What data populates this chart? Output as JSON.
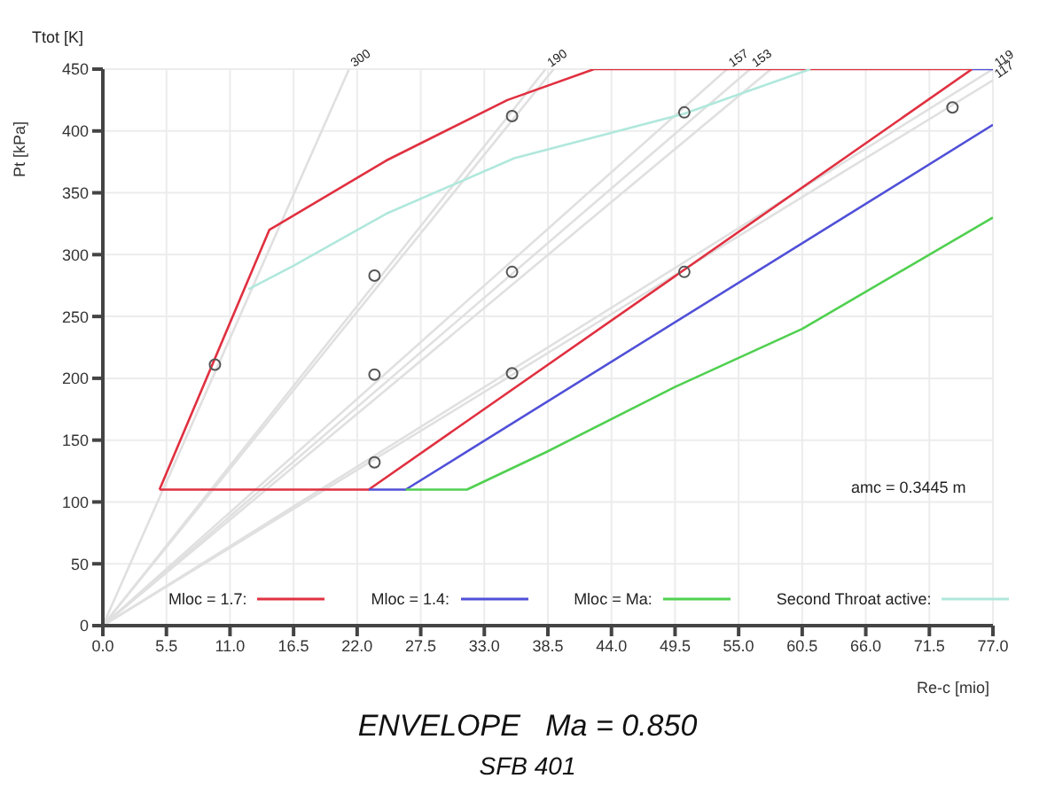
{
  "chart_data": {
    "type": "line",
    "title": "ENVELOPE   Ma = 0.850",
    "subtitle": "SFB 401",
    "xlabel": "Re-c [mio]",
    "ylabel": "Pt [kPa]",
    "annotations": [
      "Ttot [K]",
      "amc = 0.3445 m",
      {
        "text": "300",
        "x": 21.3,
        "y": 450
      },
      {
        "text": "190",
        "x": 38.3,
        "y": 450
      },
      {
        "text": "157",
        "x": 54,
        "y": 450
      },
      {
        "text": "153",
        "x": 56,
        "y": 450
      },
      {
        "text": "119",
        "x": 77,
        "y": 450
      },
      {
        "text": "117",
        "x": 77,
        "y": 441
      }
    ],
    "xlim": [
      0,
      77
    ],
    "xticks": [
      {
        "value": 0,
        "label": "0.0"
      },
      {
        "value": 5.5,
        "label": "5.5"
      },
      {
        "value": 11,
        "label": "11.0"
      },
      {
        "value": 16.5,
        "label": "16.5"
      },
      {
        "value": 22,
        "label": "22.0"
      },
      {
        "value": 27.5,
        "label": "27.5"
      },
      {
        "value": 33,
        "label": "33.0"
      },
      {
        "value": 38.5,
        "label": "38.5"
      },
      {
        "value": 44,
        "label": "44.0"
      },
      {
        "value": 49.5,
        "label": "49.5"
      },
      {
        "value": 55,
        "label": "55.0"
      },
      {
        "value": 60.5,
        "label": "60.5"
      },
      {
        "value": 66,
        "label": "66.0"
      },
      {
        "value": 71.5,
        "label": "71.5"
      },
      {
        "value": 77,
        "label": "77.0"
      }
    ],
    "ylim": [
      0,
      450
    ],
    "yticks": [
      0,
      50,
      100,
      150,
      200,
      250,
      300,
      350,
      400,
      450
    ],
    "grid": true,
    "legend": "bottom",
    "marker": "none",
    "line_style": "solid",
    "series": [
      {
        "color": "#e0e0e0",
        "x": [
          0,
          21.3
        ],
        "values": [
          0,
          450
        ]
      },
      {
        "color": "#e0e0e0",
        "x": [
          0,
          38.3
        ],
        "values": [
          0,
          450
        ]
      },
      {
        "color": "#e0e0e0",
        "x": [
          0,
          39
        ],
        "values": [
          0,
          450
        ]
      },
      {
        "color": "#e0e0e0",
        "x": [
          0,
          54
        ],
        "values": [
          0,
          450
        ]
      },
      {
        "color": "#e0e0e0",
        "x": [
          0,
          56
        ],
        "values": [
          0,
          450
        ]
      },
      {
        "color": "#e0e0e0",
        "x": [
          0,
          57.8
        ],
        "values": [
          0,
          450
        ]
      },
      {
        "color": "#e0e0e0",
        "x": [
          0,
          77
        ],
        "values": [
          0,
          450
        ]
      },
      {
        "color": "#e0e0e0",
        "x": [
          0,
          77
        ],
        "values": [
          0,
          441
        ]
      },
      {
        "name": "Mloc = 1.7:",
        "color": "#e03040",
        "x": [
          4.9,
          14.4,
          24.5,
          35,
          42.5,
          75.2
        ],
        "values": [
          110,
          320,
          376,
          425,
          450,
          450
        ]
      },
      {
        "color": "#e03040",
        "x": [
          4.9,
          23,
          75.2
        ],
        "values": [
          110,
          110,
          450
        ]
      },
      {
        "name": "Mloc = 1.4:",
        "color": "#5050d8",
        "x": [
          23,
          26.2,
          77
        ],
        "values": [
          110,
          110,
          405
        ]
      },
      {
        "color": "#5050d8",
        "x": [
          75.2,
          77
        ],
        "values": [
          450,
          450
        ]
      },
      {
        "name": "Mloc = Ma:",
        "color": "#50d050",
        "x": [
          26.2,
          31.5,
          38.5,
          49.5,
          60.5,
          77
        ],
        "values": [
          110,
          110,
          141,
          193,
          240,
          330
        ]
      },
      {
        "name": "Second Throat active:",
        "color": "#b0e8dc",
        "x": [
          12.6,
          16.5,
          24.5,
          35.6,
          50.3,
          61.2
        ],
        "values": [
          272,
          291,
          333,
          378,
          414,
          450
        ]
      },
      {
        "type": "scatter",
        "marker": "circle",
        "color": "#555555",
        "x": [
          9.7,
          23.5,
          23.5,
          23.5,
          35.4,
          35.4,
          35.4,
          50.3,
          50.3,
          73.5
        ],
        "values": [
          211,
          283,
          203,
          132,
          412,
          286,
          204,
          415,
          286,
          419
        ]
      }
    ]
  }
}
